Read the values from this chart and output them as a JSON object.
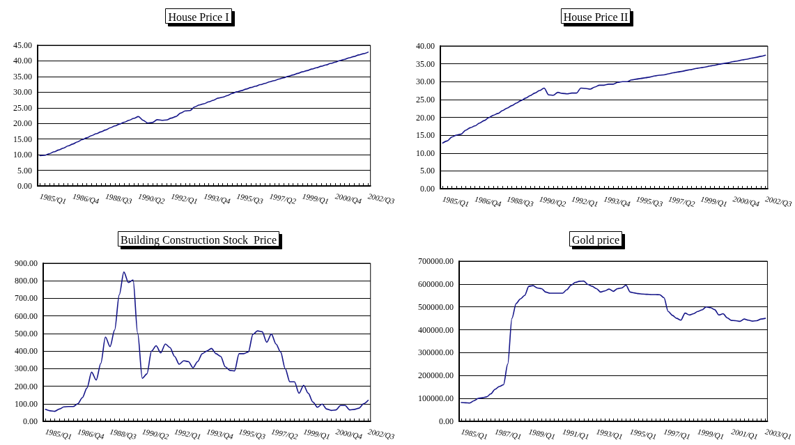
{
  "chart_data": [
    {
      "type": "line",
      "title": "House Price I",
      "categories": [
        "1985/Q1",
        null,
        null,
        null,
        null,
        null,
        null,
        "1986/Q4",
        null,
        null,
        null,
        null,
        null,
        null,
        "1988/Q3",
        null,
        null,
        null,
        null,
        null,
        null,
        "1990/Q2",
        null,
        null,
        null,
        null,
        null,
        null,
        "1992/Q1",
        null,
        null,
        null,
        null,
        null,
        null,
        "1993/Q4",
        null,
        null,
        null,
        null,
        null,
        null,
        "1995/Q3",
        null,
        null,
        null,
        null,
        null,
        null,
        "1997/Q2",
        null,
        null,
        null,
        null,
        null,
        null,
        "1999/Q1",
        null,
        null,
        null,
        null,
        null,
        null,
        "2000/Q4",
        null,
        null,
        null,
        null,
        null,
        null,
        "2002/Q3"
      ],
      "values": [
        9.7,
        9.8,
        10.3,
        10.9,
        11.5,
        12.1,
        12.8,
        13.4,
        14.1,
        14.8,
        15.4,
        16.1,
        16.7,
        17.3,
        17.9,
        18.6,
        19.2,
        19.8,
        20.4,
        21.0,
        21.6,
        22.2,
        21.0,
        20.1,
        20.3,
        21.2,
        21.0,
        21.1,
        21.7,
        22.2,
        23.3,
        24.0,
        24.1,
        25.3,
        25.9,
        26.3,
        26.9,
        27.4,
        28.1,
        28.4,
        28.9,
        29.6,
        30.1,
        30.5,
        31.0,
        31.5,
        31.9,
        32.4,
        32.8,
        33.3,
        33.7,
        34.2,
        34.6,
        35.1,
        35.5,
        36.0,
        36.5,
        36.9,
        37.4,
        37.8,
        38.3,
        38.7,
        39.2,
        39.6,
        40.1,
        40.5,
        41.0,
        41.4,
        41.9,
        42.3,
        42.8
      ],
      "color": "#141488",
      "ylim": [
        0,
        45
      ],
      "yticks": [
        {
          "value": 0,
          "label": "0.00"
        },
        {
          "value": 5,
          "label": "5.00"
        },
        {
          "value": 10,
          "label": "10.00"
        },
        {
          "value": 15,
          "label": "15.00"
        },
        {
          "value": 20,
          "label": "20.00"
        },
        {
          "value": 25,
          "label": "25.00"
        },
        {
          "value": 30,
          "label": "30.00"
        },
        {
          "value": 35,
          "label": "35.00"
        },
        {
          "value": 40,
          "label": "40.00"
        },
        {
          "value": 45,
          "label": "45.00"
        }
      ],
      "grid": "y",
      "marker": "none",
      "line_style": "solid"
    },
    {
      "type": "line",
      "title": "House Price II",
      "categories": [
        "1985/Q1",
        null,
        null,
        null,
        null,
        null,
        null,
        "1986/Q4",
        null,
        null,
        null,
        null,
        null,
        null,
        "1988/Q3",
        null,
        null,
        null,
        null,
        null,
        null,
        "1990/Q2",
        null,
        null,
        null,
        null,
        null,
        null,
        "1992/Q1",
        null,
        null,
        null,
        null,
        null,
        null,
        "1993/Q4",
        null,
        null,
        null,
        null,
        null,
        null,
        "1995/Q3",
        null,
        null,
        null,
        null,
        null,
        null,
        "1997/Q2",
        null,
        null,
        null,
        null,
        null,
        null,
        "1999/Q1",
        null,
        null,
        null,
        null,
        null,
        null,
        "2000/Q4",
        null,
        null,
        null,
        null,
        null,
        null,
        "2002/Q3"
      ],
      "values": [
        12.8,
        13.4,
        14.5,
        15.0,
        15.3,
        16.4,
        17.1,
        17.6,
        18.4,
        19.1,
        19.9,
        20.6,
        21.1,
        21.9,
        22.6,
        23.3,
        24.0,
        24.7,
        25.4,
        26.1,
        26.8,
        27.5,
        28.2,
        26.3,
        26.2,
        27.0,
        26.7,
        26.6,
        26.8,
        26.8,
        28.2,
        28.1,
        27.9,
        28.5,
        29.0,
        29.0,
        29.3,
        29.3,
        29.8,
        30.0,
        30.0,
        30.5,
        30.7,
        30.9,
        31.1,
        31.3,
        31.6,
        31.8,
        31.9,
        32.2,
        32.5,
        32.7,
        32.9,
        33.2,
        33.4,
        33.7,
        33.9,
        34.1,
        34.4,
        34.6,
        34.9,
        35.1,
        35.3,
        35.6,
        35.8,
        36.1,
        36.3,
        36.6,
        36.8,
        37.1,
        37.4
      ],
      "color": "#141488",
      "ylim": [
        0,
        40
      ],
      "yticks": [
        {
          "value": 0,
          "label": "0.00"
        },
        {
          "value": 5,
          "label": "5.00"
        },
        {
          "value": 10,
          "label": "10.00"
        },
        {
          "value": 15,
          "label": "15.00"
        },
        {
          "value": 20,
          "label": "20.00"
        },
        {
          "value": 25,
          "label": "25.00"
        },
        {
          "value": 30,
          "label": "30.00"
        },
        {
          "value": 35,
          "label": "35.00"
        },
        {
          "value": 40,
          "label": "40.00"
        }
      ],
      "grid": "y",
      "marker": "none",
      "line_style": "solid"
    },
    {
      "type": "line",
      "title": "Building Construction Stock  Price",
      "categories": [
        "1985/Q1",
        null,
        null,
        null,
        null,
        null,
        null,
        "1986/Q4",
        null,
        null,
        null,
        null,
        null,
        null,
        "1988/Q3",
        null,
        null,
        null,
        null,
        null,
        null,
        "1990/Q2",
        null,
        null,
        null,
        null,
        null,
        null,
        "1992/Q1",
        null,
        null,
        null,
        null,
        null,
        null,
        "1993/Q4",
        null,
        null,
        null,
        null,
        null,
        null,
        "1995/Q3",
        null,
        null,
        null,
        null,
        null,
        null,
        "1997/Q2",
        null,
        null,
        null,
        null,
        null,
        null,
        "1999/Q1",
        null,
        null,
        null,
        null,
        null,
        null,
        "2000/Q4",
        null,
        null,
        null,
        null,
        null,
        null,
        "2002/Q3"
      ],
      "values": [
        68,
        60,
        57,
        70,
        82,
        84,
        84,
        100,
        135,
        190,
        280,
        235,
        330,
        480,
        425,
        520,
        720,
        850,
        790,
        805,
        500,
        245,
        270,
        400,
        430,
        390,
        440,
        420,
        370,
        325,
        345,
        340,
        305,
        340,
        385,
        400,
        415,
        385,
        370,
        310,
        290,
        287,
        385,
        385,
        395,
        495,
        515,
        510,
        450,
        497,
        440,
        395,
        300,
        225,
        225,
        160,
        205,
        160,
        110,
        80,
        98,
        70,
        62,
        65,
        90,
        90,
        65,
        68,
        75,
        100,
        120
      ],
      "color": "#141488",
      "ylim": [
        0,
        900
      ],
      "yticks": [
        {
          "value": 0,
          "label": "0.00"
        },
        {
          "value": 100,
          "label": "100.00"
        },
        {
          "value": 200,
          "label": "200.00"
        },
        {
          "value": 300,
          "label": "300.00"
        },
        {
          "value": 400,
          "label": "400.00"
        },
        {
          "value": 500,
          "label": "500.00"
        },
        {
          "value": 600,
          "label": "600.00"
        },
        {
          "value": 700,
          "label": "700.00"
        },
        {
          "value": 800,
          "label": "800.00"
        },
        {
          "value": 900,
          "label": "900.00"
        }
      ],
      "grid": "y",
      "marker": "none",
      "line_style": "solid"
    },
    {
      "type": "line",
      "title": "Gold price",
      "categories": [
        "1985/Q1",
        null,
        null,
        null,
        null,
        null,
        null,
        null,
        "1987/Q1",
        null,
        null,
        null,
        null,
        null,
        null,
        null,
        "1989/Q1",
        null,
        null,
        null,
        null,
        null,
        null,
        null,
        "1991/Q1",
        null,
        null,
        null,
        null,
        null,
        null,
        null,
        "1993/Q1",
        null,
        null,
        null,
        null,
        null,
        null,
        null,
        "1995/Q1",
        null,
        null,
        null,
        null,
        null,
        null,
        null,
        "1997/Q1",
        null,
        null,
        null,
        null,
        null,
        null,
        null,
        "1999/Q1",
        null,
        null,
        null,
        null,
        null,
        null,
        null,
        "2001/Q1",
        null,
        null,
        null,
        null,
        null,
        null,
        null,
        "2003/Q1"
      ],
      "values": [
        82000,
        81000,
        80000,
        90000,
        100000,
        103000,
        107000,
        120000,
        140000,
        152000,
        160000,
        250000,
        450000,
        515000,
        535000,
        550000,
        590000,
        593000,
        583000,
        580000,
        565000,
        560000,
        560000,
        560000,
        560000,
        575000,
        595000,
        607000,
        612000,
        613000,
        598000,
        590000,
        580000,
        565000,
        570000,
        578000,
        568000,
        580000,
        583000,
        595000,
        565000,
        561000,
        558000,
        556000,
        555000,
        554000,
        554000,
        553000,
        540000,
        480000,
        463000,
        450000,
        442000,
        473000,
        465000,
        470000,
        480000,
        487000,
        500000,
        497000,
        488000,
        465000,
        470000,
        452000,
        441000,
        440000,
        437000,
        447000,
        442000,
        438000,
        440000,
        447000,
        450000
      ],
      "color": "#141488",
      "ylim": [
        0,
        700000
      ],
      "yticks": [
        {
          "value": 0,
          "label": "0.00"
        },
        {
          "value": 100000,
          "label": "100000.00"
        },
        {
          "value": 200000,
          "label": "200000.00"
        },
        {
          "value": 300000,
          "label": "300000.00"
        },
        {
          "value": 400000,
          "label": "400000.00"
        },
        {
          "value": 500000,
          "label": "500000.00"
        },
        {
          "value": 600000,
          "label": "600000.00"
        },
        {
          "value": 700000,
          "label": "700000.00"
        }
      ],
      "grid": "y",
      "marker": "none",
      "line_style": "solid"
    }
  ]
}
